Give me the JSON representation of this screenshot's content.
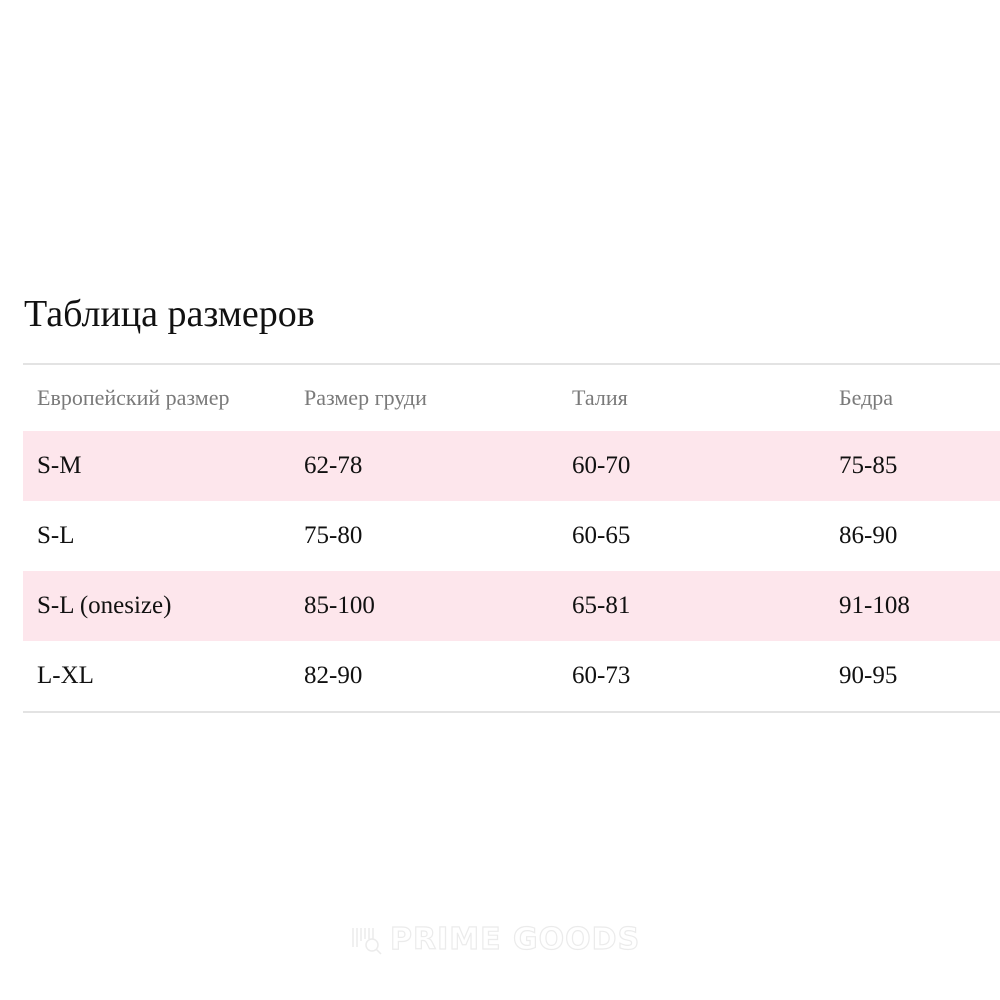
{
  "title": "Таблица размеров",
  "table": {
    "headers": [
      "Европейский размер",
      "Размер груди",
      "Талия",
      "Бедра"
    ],
    "rows": [
      [
        "S-M",
        "62-78",
        "60-70",
        "75-85"
      ],
      [
        "S-L",
        "75-80",
        "60-65",
        "86-90"
      ],
      [
        "S-L (onesize)",
        "85-100",
        "65-81",
        "91-108"
      ],
      [
        "L-XL",
        "82-90",
        "60-73",
        "90-95"
      ]
    ]
  },
  "colors": {
    "stripe": "#fde6ec",
    "header_text": "#7a7a7a",
    "border": "#e3e3e3"
  },
  "watermark": {
    "text": "PRIME GOODS",
    "icon": "barcode-magnifier-icon"
  }
}
